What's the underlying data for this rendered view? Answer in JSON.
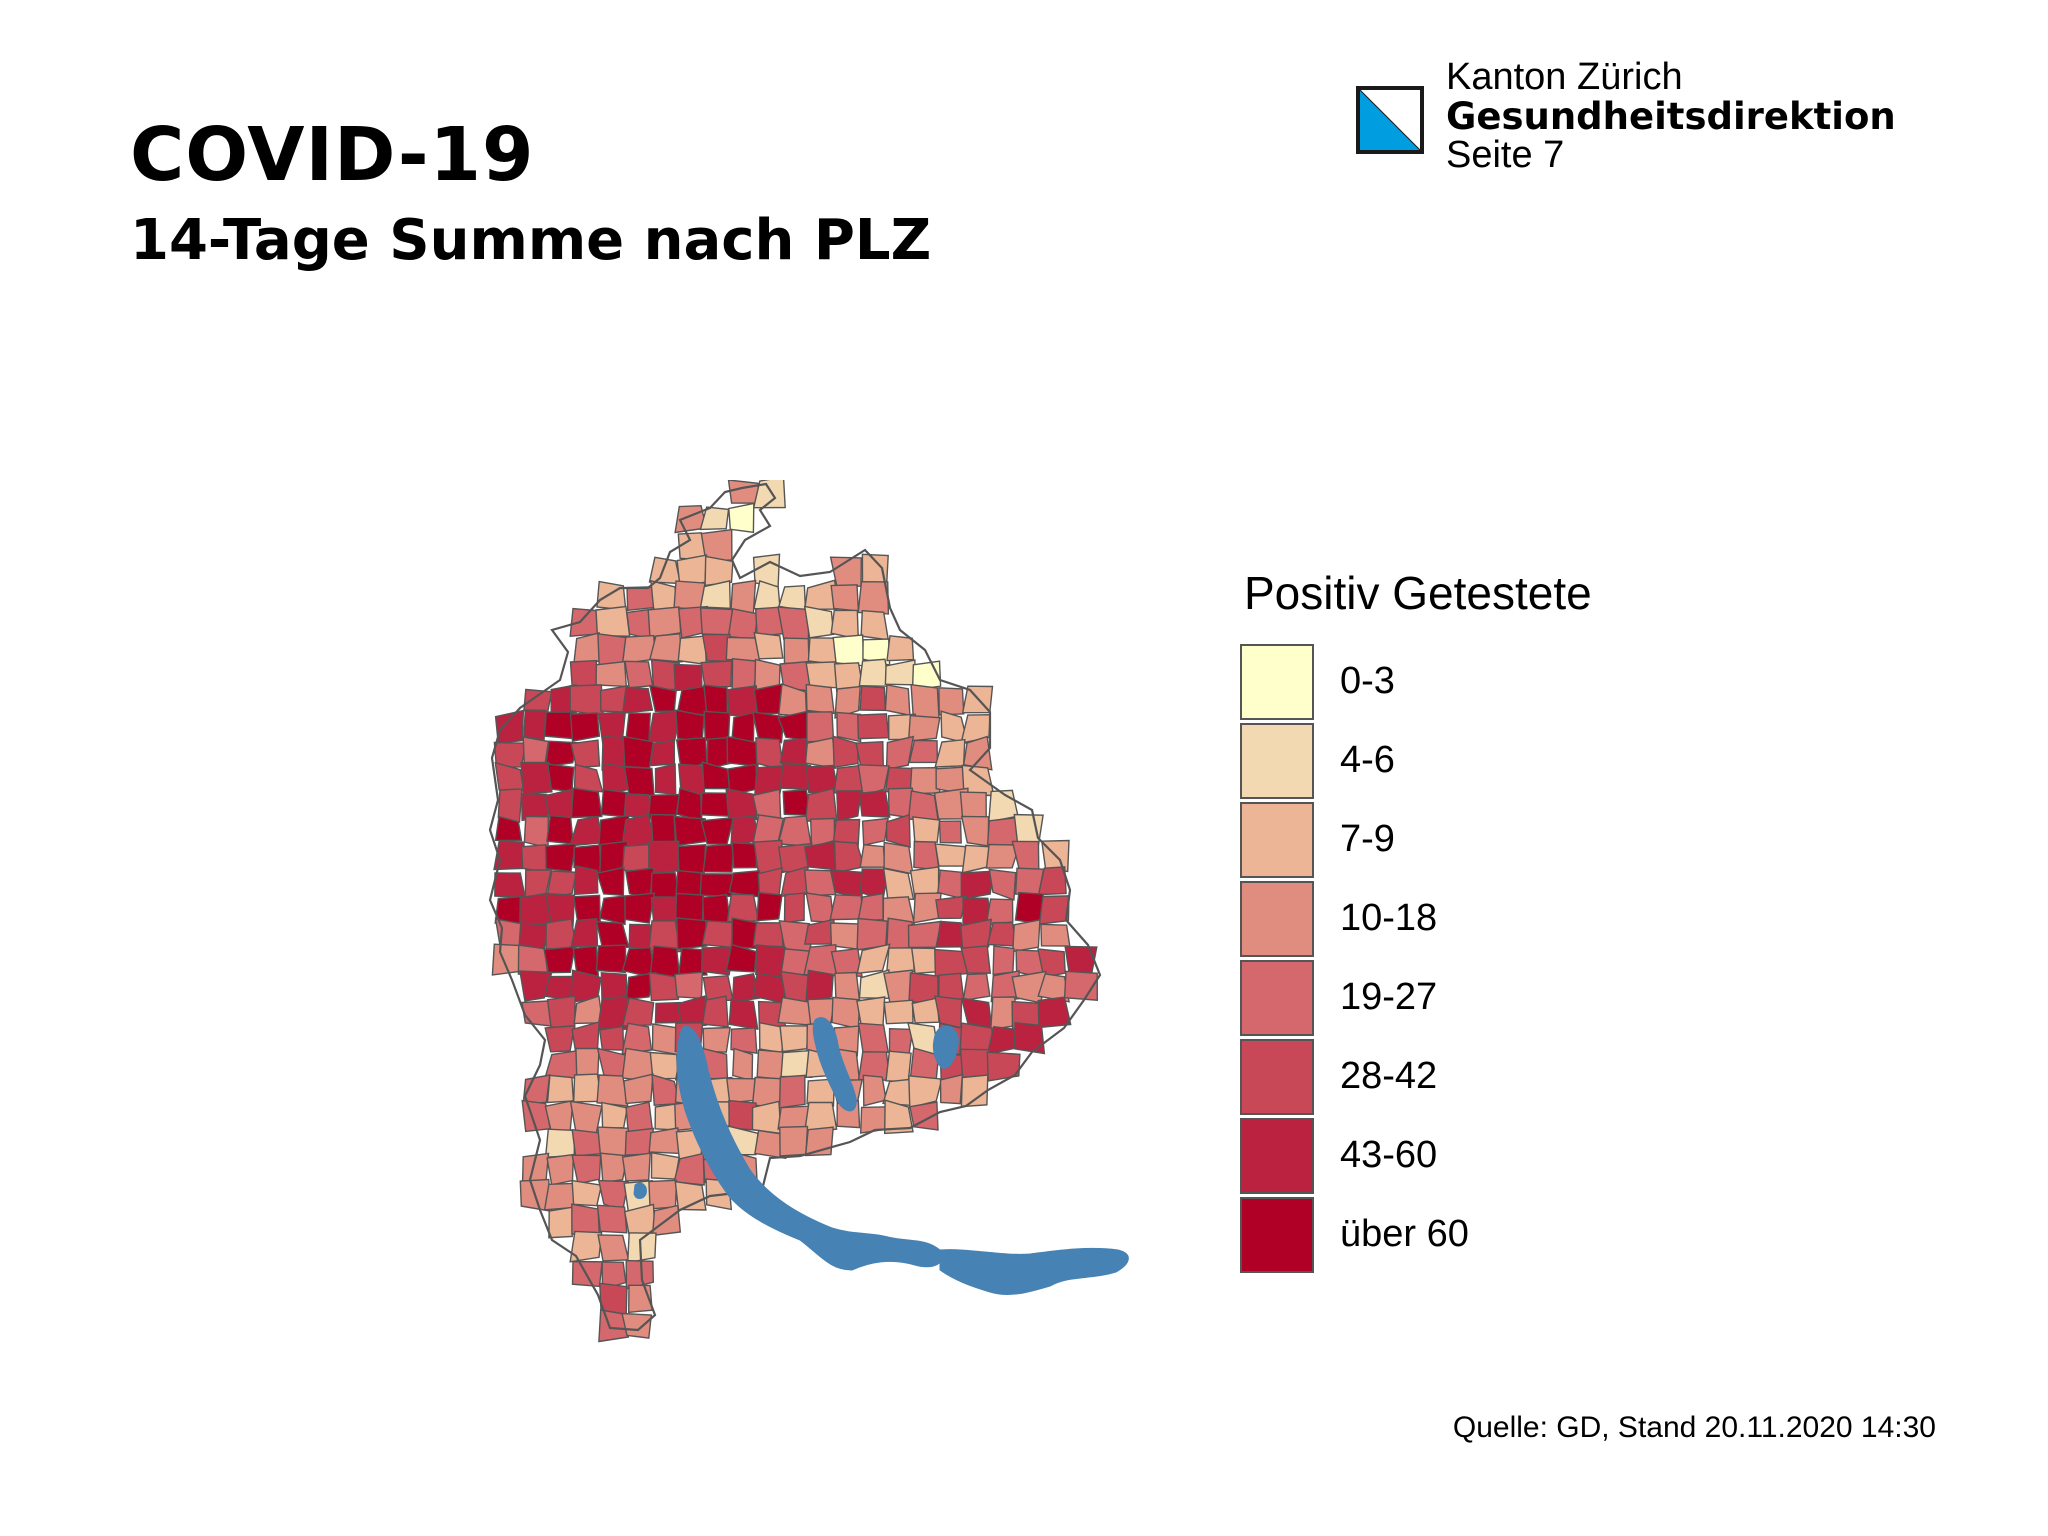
{
  "header": {
    "title": "COVID-19",
    "subtitle": "14-Tage Summe nach PLZ"
  },
  "branding": {
    "organization": "Kanton Zürich",
    "department": "Gesundheitsdirektion",
    "page": "Seite 7",
    "logo_icon": "zurich-canton-flag-icon",
    "logo_colors": {
      "blue": "#009ee0",
      "white": "#ffffff",
      "border": "#1a1a1a"
    }
  },
  "map": {
    "lake_color": "#4682b4",
    "border_color": "#555555"
  },
  "legend": {
    "title": "Positiv Getestete",
    "items": [
      {
        "label": "0-3",
        "color": "#ffffcc"
      },
      {
        "label": "4-6",
        "color": "#f3d9b1"
      },
      {
        "label": "7-9",
        "color": "#ebb596"
      },
      {
        "label": "10-18",
        "color": "#e08d80"
      },
      {
        "label": "19-27",
        "color": "#d4686d"
      },
      {
        "label": "28-42",
        "color": "#c84858"
      },
      {
        "label": "43-60",
        "color": "#bb2240"
      },
      {
        "label": "über 60",
        "color": "#b00025"
      }
    ]
  },
  "footer": {
    "source": "Quelle: GD, Stand 20.11.2020 14:30"
  }
}
